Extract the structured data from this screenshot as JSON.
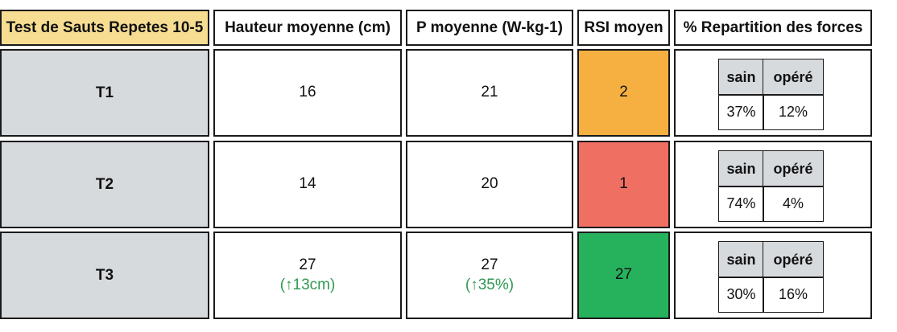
{
  "header": {
    "test": "Test de Sauts Repetes 10-5",
    "hauteur": "Hauteur moyenne (cm)",
    "puissance": "P moyenne (W-kg-1)",
    "rsi": "RSI moyen",
    "repartition": "% Repartition des forces"
  },
  "rows": [
    {
      "label": "T1",
      "hauteur": "16",
      "hauteur_delta": "",
      "puissance": "21",
      "puissance_delta": "",
      "rsi": "2",
      "rsi_color": "#f6b041",
      "repartition": {
        "sain_label": "sain",
        "opere_label": "opéré",
        "sain": "37%",
        "opere": "12%"
      }
    },
    {
      "label": "T2",
      "hauteur": "14",
      "hauteur_delta": "",
      "puissance": "20",
      "puissance_delta": "",
      "rsi": "1",
      "rsi_color": "#ef6f62",
      "repartition": {
        "sain_label": "sain",
        "opere_label": "opéré",
        "sain": "74%",
        "opere": "4%"
      }
    },
    {
      "label": "T3",
      "hauteur": "27",
      "hauteur_delta": "(↑13cm)",
      "puissance": "27",
      "puissance_delta": "(↑35%)",
      "rsi": "27",
      "rsi_color": "#26b25d",
      "repartition": {
        "sain_label": "sain",
        "opere_label": "opéré",
        "sain": "30%",
        "opere": "16%"
      }
    }
  ],
  "colors": {
    "header_highlight": "#f6dd92",
    "row_label_bg": "#d7dadd",
    "delta_text": "#2e9a52",
    "border": "#1a1a1a"
  }
}
